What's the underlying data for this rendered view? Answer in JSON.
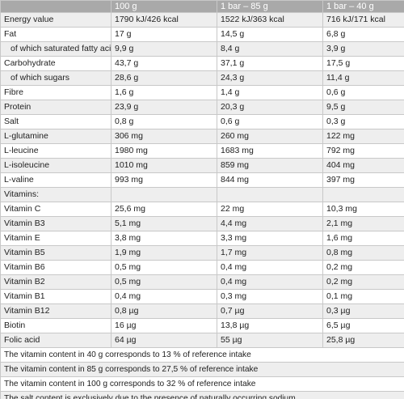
{
  "table": {
    "columns": [
      "",
      "100 g",
      "1 bar – 85 g",
      "1 bar – 40 g"
    ],
    "rows": [
      {
        "label": "Energy value",
        "indent": false,
        "values": [
          "1790 kJ/426 kcal",
          "1522 kJ/363 kcal",
          "716 kJ/171 kcal"
        ]
      },
      {
        "label": "Fat",
        "indent": false,
        "values": [
          "17 g",
          "14,5 g",
          "6,8 g"
        ]
      },
      {
        "label": "of which saturated fatty acids",
        "indent": true,
        "values": [
          "9,9 g",
          "8,4 g",
          "3,9 g"
        ]
      },
      {
        "label": "Carbohydrate",
        "indent": false,
        "values": [
          "43,7 g",
          "37,1 g",
          "17,5 g"
        ]
      },
      {
        "label": "of which sugars",
        "indent": true,
        "values": [
          "28,6 g",
          "24,3 g",
          "11,4 g"
        ]
      },
      {
        "label": "Fibre",
        "indent": false,
        "values": [
          "1,6 g",
          "1,4 g",
          "0,6 g"
        ]
      },
      {
        "label": "Protein",
        "indent": false,
        "values": [
          "23,9 g",
          "20,3 g",
          "9,5 g"
        ]
      },
      {
        "label": "Salt",
        "indent": false,
        "values": [
          "0,8 g",
          "0,6 g",
          "0,3 g"
        ]
      },
      {
        "label": "L-glutamine",
        "indent": false,
        "values": [
          "306 mg",
          "260 mg",
          "122 mg"
        ]
      },
      {
        "label": "L-leucine",
        "indent": false,
        "values": [
          "1980 mg",
          "1683 mg",
          "792 mg"
        ]
      },
      {
        "label": "L-isoleucine",
        "indent": false,
        "values": [
          "1010 mg",
          "859 mg",
          "404 mg"
        ]
      },
      {
        "label": "L-valine",
        "indent": false,
        "values": [
          "993 mg",
          "844 mg",
          "397 mg"
        ]
      },
      {
        "label": "Vitamins:",
        "indent": false,
        "values": [
          "",
          "",
          ""
        ]
      },
      {
        "label": "Vitamin C",
        "indent": false,
        "values": [
          "25,6 mg",
          "22 mg",
          "10,3 mg"
        ]
      },
      {
        "label": "Vitamin B3",
        "indent": false,
        "values": [
          "5,1 mg",
          "4,4 mg",
          "2,1 mg"
        ]
      },
      {
        "label": "Vitamin E",
        "indent": false,
        "values": [
          "3,8 mg",
          "3,3 mg",
          "1,6 mg"
        ]
      },
      {
        "label": "Vitamin B5",
        "indent": false,
        "values": [
          "1,9 mg",
          "1,7 mg",
          "0,8 mg"
        ]
      },
      {
        "label": "Vitamin B6",
        "indent": false,
        "values": [
          "0,5 mg",
          "0,4 mg",
          "0,2 mg"
        ]
      },
      {
        "label": "Vitamin B2",
        "indent": false,
        "values": [
          "0,5 mg",
          "0,4 mg",
          "0,2 mg"
        ]
      },
      {
        "label": "Vitamin B1",
        "indent": false,
        "values": [
          "0,4 mg",
          "0,3 mg",
          "0,1 mg"
        ]
      },
      {
        "label": "Vitamin B12",
        "indent": false,
        "values": [
          "0,8 µg",
          "0,7 µg",
          "0,3 µg"
        ]
      },
      {
        "label": "Biotin",
        "indent": false,
        "values": [
          "16 µg",
          "13,8 µg",
          "6,5 µg"
        ]
      },
      {
        "label": "Folic acid",
        "indent": false,
        "values": [
          "64 µg",
          "55 µg",
          "25,8 µg"
        ]
      }
    ],
    "notes": [
      "The vitamin content in 40 g corresponds to 13 % of reference intake",
      "The vitamin content in 85 g corresponds to 27,5 % of reference intake",
      "The vitamin content in 100 g corresponds to 32 % of reference intake",
      "The salt content is exclusively due to the presence of naturally occurring sodium."
    ]
  }
}
